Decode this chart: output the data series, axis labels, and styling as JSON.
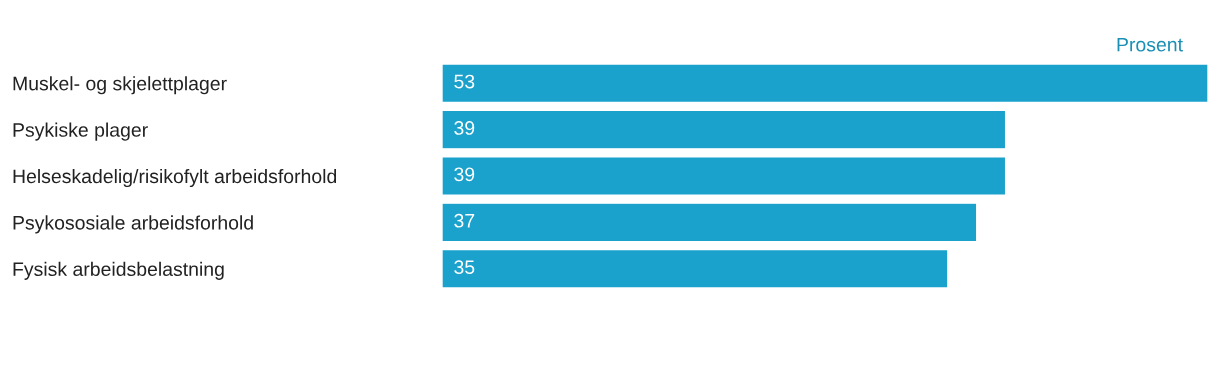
{
  "chart_data": {
    "type": "bar",
    "orientation": "horizontal",
    "xlabel": "Prosent",
    "categories": [
      "Muskel- og skjelettplager",
      "Psykiske plager",
      "Helseskadelig/risikofylt arbeidsforhold",
      "Psykososiale arbeidsforhold",
      "Fysisk arbeidsbelastning"
    ],
    "values": [
      53,
      39,
      39,
      37,
      35
    ],
    "color": "#1aa1cc",
    "data_labels": true,
    "grid": false,
    "legend": false
  }
}
